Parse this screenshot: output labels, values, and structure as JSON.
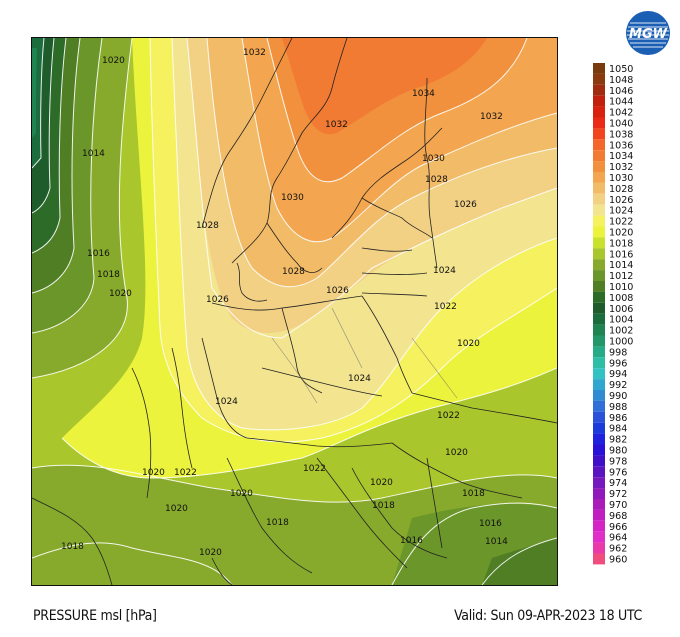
{
  "title": "PRESSURE msl [hPa]",
  "valid": "Valid: Sun 09-APR-2023 18 UTC",
  "logo_text": "MGW",
  "colors": {
    "border": "#ffffff",
    "isobar": "#ffffff",
    "land_border": "#222222"
  },
  "scale": {
    "levels": [
      1050,
      1048,
      1046,
      1044,
      1042,
      1040,
      1038,
      1036,
      1034,
      1032,
      1030,
      1028,
      1026,
      1024,
      1022,
      1020,
      1018,
      1016,
      1014,
      1012,
      1010,
      1008,
      1006,
      1004,
      1002,
      1000,
      998,
      996,
      994,
      992,
      990,
      988,
      986,
      984,
      982,
      980,
      978,
      976,
      974,
      972,
      970,
      968,
      966,
      964,
      962,
      960
    ],
    "colors": [
      "#7a3b0c",
      "#8b3a10",
      "#a02c10",
      "#c1200d",
      "#d8220f",
      "#ea2a16",
      "#f2451e",
      "#f4662a",
      "#f27b33",
      "#f1913e",
      "#f3a64f",
      "#f2bb67",
      "#f2d185",
      "#f3e48f",
      "#f5f15f",
      "#ecf33c",
      "#c9e22e",
      "#a9c62c",
      "#87aa2c",
      "#6b962a",
      "#4f7e25",
      "#2c6b28",
      "#1e5c2c",
      "#1c6d3e",
      "#1f8451",
      "#23976a",
      "#27ab86",
      "#2dbea5",
      "#31c3c3",
      "#2fa7cf",
      "#318bd2",
      "#2f6fd7",
      "#2a52d8",
      "#1c3bdb",
      "#1f23dd",
      "#2a11d8",
      "#4010c9",
      "#5a14c0",
      "#7518bd",
      "#9019bb",
      "#a91cba",
      "#c11ec1",
      "#d524c6",
      "#e02ec8",
      "#ea3aa9",
      "#f14c7e"
    ]
  },
  "isobar_labels": [
    {
      "text": "1020"
    },
    {
      "text": "1014"
    },
    {
      "text": "1016"
    },
    {
      "text": "1018"
    },
    {
      "text": "1020"
    },
    {
      "text": "1032"
    },
    {
      "text": "1034"
    },
    {
      "text": "1032"
    },
    {
      "text": "1032"
    },
    {
      "text": "1030"
    },
    {
      "text": "1028"
    },
    {
      "text": "1030"
    },
    {
      "text": "1026"
    },
    {
      "text": "1028"
    },
    {
      "text": "1028"
    },
    {
      "text": "1026"
    },
    {
      "text": "1026"
    },
    {
      "text": "1024"
    },
    {
      "text": "1022"
    },
    {
      "text": "1020"
    },
    {
      "text": "1024"
    },
    {
      "text": "1024"
    },
    {
      "text": "1022"
    },
    {
      "text": "1020"
    },
    {
      "text": "1018"
    },
    {
      "text": "1020"
    },
    {
      "text": "1022"
    },
    {
      "text": "1020"
    },
    {
      "text": "1020"
    },
    {
      "text": "1022"
    },
    {
      "text": "1020"
    },
    {
      "text": "1018"
    },
    {
      "text": "1018"
    },
    {
      "text": "1016"
    },
    {
      "text": "1016"
    },
    {
      "text": "1014"
    },
    {
      "text": "1018"
    },
    {
      "text": "1020"
    }
  ]
}
